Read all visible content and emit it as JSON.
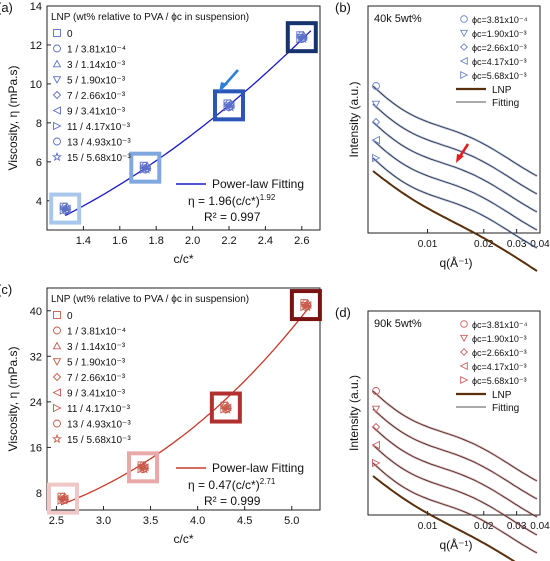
{
  "panels": {
    "a": {
      "letter": "(a)",
      "legend_title": "LNP (wt% relative to PVA / ϕc in suspension)",
      "legend_items": [
        "0",
        "1 / 3.81x10⁻⁴",
        "3 / 1.14x10⁻³",
        "5 / 1.90x10⁻³",
        "7 / 2.66x10⁻³",
        "9 / 3.41x10⁻³",
        "11 / 4.17x10⁻³",
        "13 / 4.93x10⁻³",
        "15 / 5.68x10⁻³"
      ],
      "fit_label": "Power-law Fitting",
      "eq": "η = 1.96(c/c*)",
      "eq_exp": "1.92",
      "r2": "R² = 0.997",
      "xlabel": "c/c*",
      "ylabel": "Viscosity, η (mPa.s)",
      "color": "#1a1ac8"
    },
    "b": {
      "letter": "(b)",
      "title": "40k 5wt%",
      "legend_items": [
        "ϕc=3.81x10⁻⁴",
        "ϕc=1.90x10⁻³",
        "ϕc=2.66x10⁻³",
        "ϕc=4.17x10⁻³",
        "ϕc=5.68x10⁻³"
      ],
      "lnp_label": "LNP",
      "fit_label": "Fitting",
      "xlabel": "q(Å⁻¹)",
      "ylabel": "Intensity (a.u.)",
      "color": "#6a84c8"
    },
    "c": {
      "letter": "(c)",
      "legend_title": "LNP (wt% relative to PVA / ϕc in suspension)",
      "legend_items": [
        "0",
        "1 / 3.81x10⁻⁴",
        "3 / 1.14x10⁻³",
        "5 / 1.90x10⁻³",
        "7 / 2.66x10⁻³",
        "9 / 3.41x10⁻³",
        "11 / 4.17x10⁻³",
        "13 / 4.93x10⁻³",
        "15 / 5.68x10⁻³"
      ],
      "fit_label": "Power-law Fitting",
      "eq": "η = 0.47(c/c*)",
      "eq_exp": "2.71",
      "r2": "R² = 0.999",
      "xlabel": "c/c*",
      "ylabel": "Viscosity, η (mPa.s)",
      "color": "#c83a2a"
    },
    "d": {
      "letter": "(d)",
      "title": "90k 5wt%",
      "legend_items": [
        "ϕc=3.81x10⁻⁴",
        "ϕc=1.90x10⁻³",
        "ϕc=2.66x10⁻³",
        "ϕc=4.17x10⁻³",
        "ϕc=5.68x10⁻³"
      ],
      "lnp_label": "LNP",
      "fit_label": "Fitting",
      "xlabel": "q(Å⁻¹)",
      "ylabel": "Intensity (a.u.)",
      "color": "#c86060"
    }
  },
  "chart_data": [
    {
      "id": "a",
      "type": "scatter",
      "xlim": [
        1.2,
        2.7
      ],
      "ylim": [
        2.5,
        14
      ],
      "xticks": [
        "1.4",
        "1.6",
        "1.8",
        "2.0",
        "2.2",
        "2.4",
        "2.6"
      ],
      "xtick_vals": [
        1.4,
        1.6,
        1.8,
        2.0,
        2.2,
        2.4,
        2.6
      ],
      "yticks": [
        "4",
        "6",
        "8",
        "10",
        "12",
        "14"
      ],
      "ytick_vals": [
        4,
        6,
        8,
        10,
        12,
        14
      ],
      "groups": [
        {
          "x": 1.3,
          "y": 3.6
        },
        {
          "x": 1.74,
          "y": 5.7
        },
        {
          "x": 2.2,
          "y": 8.9
        },
        {
          "x": 2.6,
          "y": 12.4
        }
      ],
      "fit": {
        "a": 1.96,
        "b": 1.92,
        "range": [
          1.3,
          2.65
        ]
      }
    },
    {
      "id": "b",
      "type": "line",
      "xticks": [
        "0.01",
        "0.02",
        "0.03",
        "0.04"
      ],
      "xtick_vals": [
        0.01,
        0.02,
        0.03,
        0.04
      ],
      "log_x": true,
      "xlim": [
        0.0048,
        0.04
      ]
    },
    {
      "id": "c",
      "type": "scatter",
      "xlim": [
        2.4,
        5.3
      ],
      "ylim": [
        5,
        44
      ],
      "xticks": [
        "2.5",
        "3.0",
        "3.5",
        "4.0",
        "4.5",
        "5.0"
      ],
      "xtick_vals": [
        2.5,
        3.0,
        3.5,
        4.0,
        4.5,
        5.0
      ],
      "yticks": [
        "8",
        "16",
        "24",
        "32",
        "40"
      ],
      "ytick_vals": [
        8,
        16,
        24,
        32,
        40
      ],
      "groups": [
        {
          "x": 2.57,
          "y": 7.0
        },
        {
          "x": 3.42,
          "y": 12.5
        },
        {
          "x": 4.3,
          "y": 23.0
        },
        {
          "x": 5.15,
          "y": 41.0
        }
      ],
      "fit": {
        "a": 0.47,
        "b": 2.71,
        "range": [
          2.55,
          5.2
        ]
      }
    },
    {
      "id": "d",
      "type": "line",
      "xticks": [
        "0.01",
        "0.02",
        "0.03",
        "0.04"
      ],
      "xtick_vals": [
        0.01,
        0.02,
        0.03,
        0.04
      ],
      "log_x": true,
      "xlim": [
        0.0048,
        0.04
      ]
    }
  ]
}
